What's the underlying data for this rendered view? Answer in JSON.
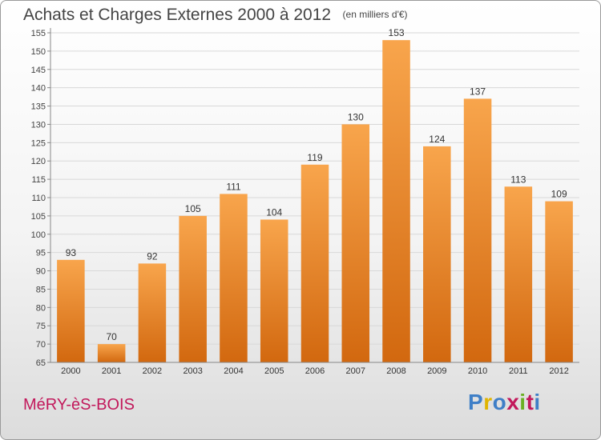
{
  "header": {
    "title": "Achats et Charges Externes 2000 à 2012",
    "subtitle": "(en milliers d'€)"
  },
  "footer": {
    "town": "MéRY-èS-BOIS",
    "brand": "Proxiti",
    "brand_colors": [
      "#3f7fc7",
      "#e0b400",
      "#3f7fc7",
      "#c2185b",
      "#6ab023",
      "#c2185b",
      "#3f7fc7"
    ]
  },
  "colors": {
    "bar_light": "#f8a54c",
    "bar_dark": "#d2680f",
    "town": "#c2185b"
  },
  "chart_data": {
    "type": "bar",
    "title": "Achats et Charges Externes 2000 à 2012",
    "subtitle": "(en milliers d'€)",
    "categories": [
      "2000",
      "2001",
      "2002",
      "2003",
      "2004",
      "2005",
      "2006",
      "2007",
      "2008",
      "2009",
      "2010",
      "2011",
      "2012"
    ],
    "values": [
      93,
      70,
      92,
      105,
      111,
      104,
      119,
      130,
      153,
      124,
      137,
      113,
      109
    ],
    "ylim": [
      65,
      155
    ],
    "ytick_step": 5,
    "grid": true
  }
}
